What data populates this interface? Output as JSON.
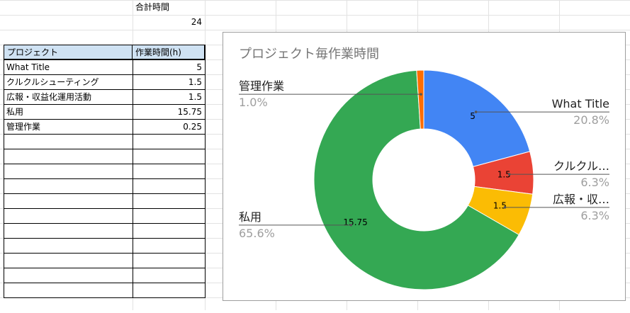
{
  "summary": {
    "label": "合計時間",
    "value": "24"
  },
  "table": {
    "headers": [
      "プロジェクト",
      "作業時間(h)"
    ],
    "rows": [
      [
        "What Title",
        "5"
      ],
      [
        "クルクルシューティング",
        "1.5"
      ],
      [
        "広報・収益化運用活動",
        "1.5"
      ],
      [
        "私用",
        "15.75"
      ],
      [
        "管理作業",
        "0.25"
      ]
    ]
  },
  "chart_data": {
    "type": "pie",
    "donut": true,
    "title": "プロジェクト毎作業時間",
    "slices": [
      {
        "name": "What Title",
        "value": 5,
        "label": "What Title",
        "percent": "20.8%",
        "color": "#4285f4",
        "label_side": "right"
      },
      {
        "name": "クルクルシューティング",
        "value": 1.5,
        "label": "クルクル…",
        "percent": "6.3%",
        "color": "#ea4335",
        "label_side": "right"
      },
      {
        "name": "広報・収益化運用活動",
        "value": 1.5,
        "label": "広報・収…",
        "percent": "6.3%",
        "color": "#fbbc04",
        "label_side": "right"
      },
      {
        "name": "私用",
        "value": 15.75,
        "label": "私用",
        "percent": "65.6%",
        "color": "#34a853",
        "label_side": "left"
      },
      {
        "name": "管理作業",
        "value": 0.25,
        "label": "管理作業",
        "percent": "1.0%",
        "color": "#ff6d01",
        "label_side": "left"
      }
    ]
  }
}
